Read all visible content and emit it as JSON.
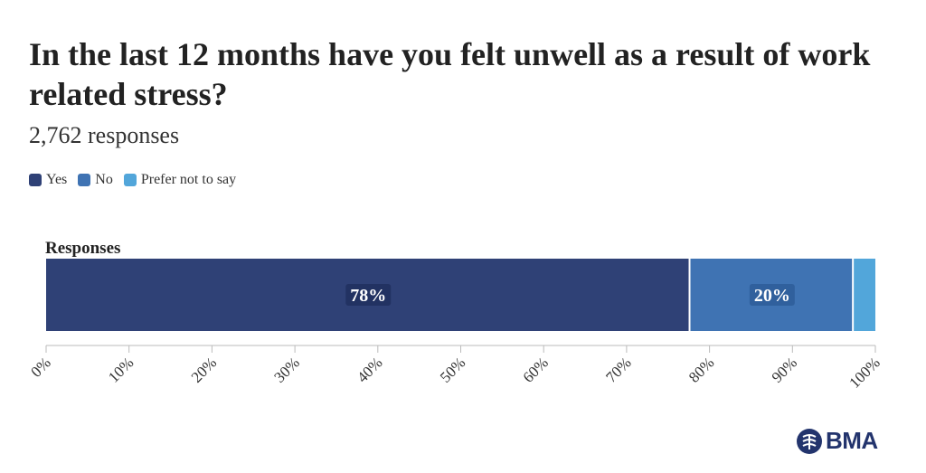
{
  "chart_data": {
    "type": "bar",
    "orientation": "horizontal-stacked",
    "title": "In the last 12 months have you felt unwell as a result of work related stress?",
    "subtitle": "2,762 responses",
    "categories": [
      "Responses"
    ],
    "series": [
      {
        "name": "Yes",
        "values": [
          77.7
        ],
        "label": "78%",
        "color": "#2f4176"
      },
      {
        "name": "No",
        "values": [
          19.7
        ],
        "label": "20%",
        "color": "#3f73b3"
      },
      {
        "name": "Prefer not to say",
        "values": [
          2.6
        ],
        "label": "",
        "color": "#52a6da"
      }
    ],
    "xlim": [
      0,
      100
    ],
    "xticks": [
      "0%",
      "10%",
      "20%",
      "30%",
      "40%",
      "50%",
      "60%",
      "70%",
      "80%",
      "90%",
      "100%"
    ],
    "legend_position": "top-left",
    "grid": false
  },
  "logo": {
    "text": "BMA",
    "icon": "bma-logo-icon"
  }
}
